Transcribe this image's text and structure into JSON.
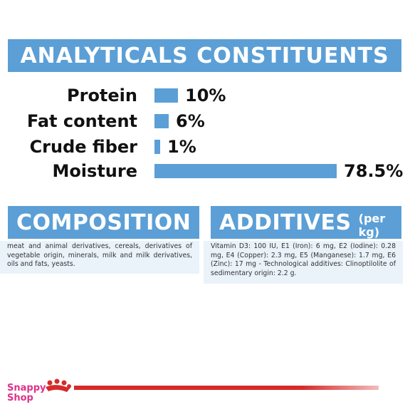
{
  "analyticals": {
    "title": "ANALYTICALS CONSTITUENTS",
    "items": [
      {
        "label": "Protein",
        "value": "10%",
        "fraction": 0.1
      },
      {
        "label": "Fat content",
        "value": "6%",
        "fraction": 0.06
      },
      {
        "label": "Crude fiber",
        "value": "1%",
        "fraction": 0.01
      },
      {
        "label": "Moisture",
        "value": "78.5%",
        "fraction": 0.785
      }
    ]
  },
  "composition": {
    "title": "COMPOSITION",
    "text": "meat and animal derivatives, cereals, derivatives of vegetable origin, minerals, milk and milk derivatives, oils and fats, yeasts."
  },
  "additives": {
    "title": "ADDITIVES",
    "suffix": "(per kg)",
    "text": "Vitamin D3: 100 IU, E1 (Iron): 6 mg, E2 (Iodine): 0.28 mg, E4 (Copper): 2.3 mg, E5 (Manganese): 1.7 mg, E6 (Zinc): 17 mg - Technological additives: Clinoptilolite of sedimentary origin: 2.2 g."
  },
  "footer": {
    "logo_text_line1": "Snappy",
    "logo_text_line2": "Shop",
    "brand_color": "#d72a2a",
    "logo_text_color": "#e0308a",
    "accent_color": "#5b9fd6"
  }
}
